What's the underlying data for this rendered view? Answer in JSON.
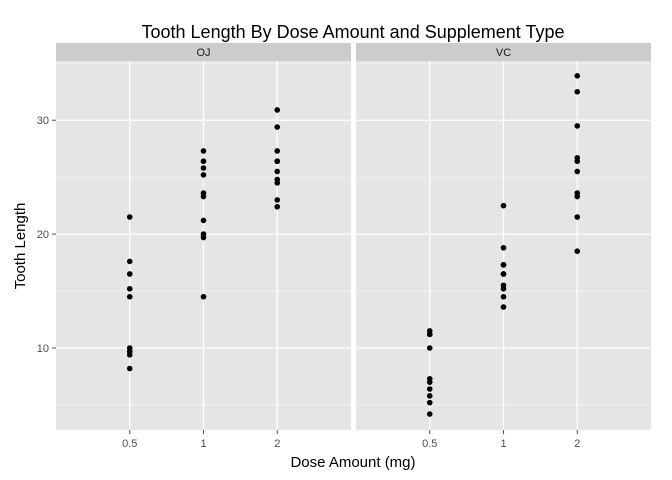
{
  "chart_data": {
    "type": "scatter",
    "title": "Tooth Length By Dose Amount and Supplement Type",
    "xlabel": "Dose Amount (mg)",
    "ylabel": "Tooth Length",
    "x_categories": [
      "0.5",
      "1",
      "2"
    ],
    "y_ticks": [
      10,
      20,
      30
    ],
    "ylim": [
      2.8,
      35.2
    ],
    "grid": true,
    "colors": {
      "panel_bg": "#e5e5e5",
      "strip_bg": "#cccccc",
      "grid_major": "#ffffff",
      "grid_minor": "#f2f2f2",
      "point": "#000000"
    },
    "panels": [
      {
        "label": "OJ",
        "points": {
          "0.5": [
            15.2,
            21.5,
            17.6,
            9.7,
            14.5,
            10.0,
            8.2,
            9.4,
            16.5,
            9.7
          ],
          "1": [
            19.7,
            23.3,
            23.6,
            26.4,
            20.0,
            25.2,
            25.8,
            21.2,
            14.5,
            27.3
          ],
          "2": [
            25.5,
            26.4,
            22.4,
            24.5,
            24.8,
            30.9,
            26.4,
            27.3,
            29.4,
            23.0
          ]
        }
      },
      {
        "label": "VC",
        "points": {
          "0.5": [
            4.2,
            11.5,
            7.3,
            5.8,
            6.4,
            10.0,
            11.2,
            11.2,
            5.2,
            7.0
          ],
          "1": [
            16.5,
            16.5,
            15.2,
            17.3,
            22.5,
            17.3,
            13.6,
            14.5,
            18.8,
            15.5
          ],
          "2": [
            23.6,
            18.5,
            33.9,
            25.5,
            26.4,
            32.5,
            26.7,
            21.5,
            23.3,
            29.5
          ]
        }
      }
    ]
  }
}
